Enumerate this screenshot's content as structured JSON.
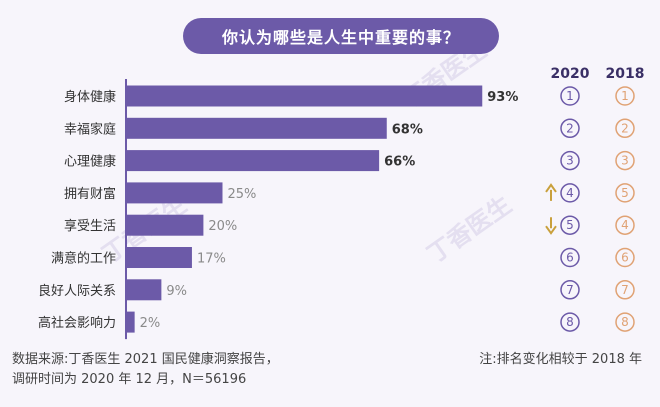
{
  "watermarks": [
    "丁香医生",
    "丁香医生",
    "丁香医生"
  ],
  "rank_headers": {
    "left": "2020",
    "right": "2018"
  },
  "chart_data": {
    "type": "bar",
    "orientation": "horizontal",
    "title": "你认为哪些是人生中重要的事？",
    "categories": [
      "身体健康",
      "幸福家庭",
      "心理健康",
      "拥有财富",
      "享受生活",
      "满意的工作",
      "良好人际关系",
      "高社会影响力"
    ],
    "values": [
      93,
      68,
      66,
      25,
      20,
      17,
      9,
      2
    ],
    "value_labels": [
      "93%",
      "68%",
      "66%",
      "25%",
      "20%",
      "17%",
      "9%",
      "2%"
    ],
    "label_emphasis": [
      true,
      true,
      true,
      false,
      false,
      false,
      false,
      false
    ],
    "xlim": [
      0,
      100
    ],
    "rank_2020": [
      "1",
      "2",
      "3",
      "4",
      "5",
      "6",
      "7",
      "8"
    ],
    "rank_2018": [
      "1",
      "2",
      "3",
      "5",
      "4",
      "6",
      "7",
      "8"
    ],
    "rank_change": [
      "",
      "",
      "",
      "up",
      "down",
      "",
      "",
      ""
    ],
    "colors": {
      "bar": "#6c5aa8",
      "rank_2020": "#6c5aa8",
      "rank_2018": "#e0a274",
      "arrow": "#c9a03c",
      "axis": "#6c5aa8",
      "label_strong": "#333333",
      "label_light": "#8a8a8a"
    }
  },
  "footer": {
    "source_line1": "数据来源:丁香医生 2021 国民健康洞察报告，",
    "source_line2": "调研时间为 2020 年 12 月，N＝56196",
    "note": "注:排名变化相较于 2018 年"
  }
}
